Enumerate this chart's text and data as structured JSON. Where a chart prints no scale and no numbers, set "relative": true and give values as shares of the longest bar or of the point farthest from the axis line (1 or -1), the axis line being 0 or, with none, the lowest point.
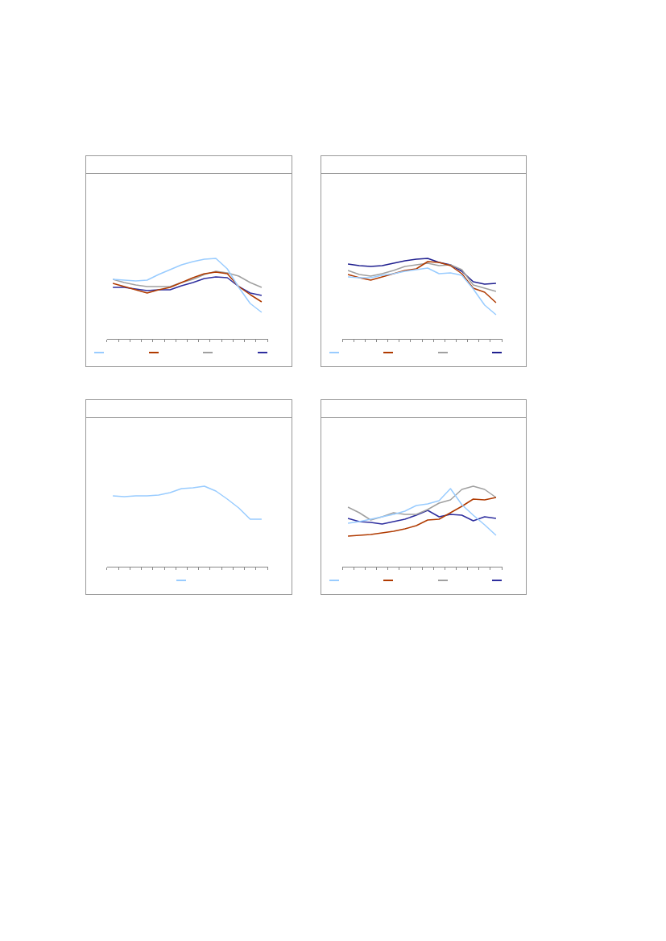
{
  "chart_data": [
    {
      "type": "line",
      "relative": true,
      "categories": [
        null,
        null,
        null,
        null,
        null,
        null,
        null,
        null,
        null,
        null,
        null,
        null,
        null,
        null
      ],
      "series": [
        {
          "color": "#99ccff",
          "values": [
            0.74,
            0.73,
            0.72,
            0.73,
            0.8,
            0.86,
            0.92,
            0.96,
            0.99,
            1,
            0.87,
            0.64,
            0.44,
            0.33
          ]
        },
        {
          "color": "#b03a00",
          "values": [
            0.69,
            0.65,
            0.61,
            0.57,
            0.61,
            0.64,
            0.7,
            0.76,
            0.81,
            0.83,
            0.81,
            0.65,
            0.55,
            0.46
          ]
        },
        {
          "color": "#a0a0a0",
          "values": [
            0.74,
            0.7,
            0.67,
            0.65,
            0.65,
            0.65,
            0.7,
            0.74,
            0.8,
            0.84,
            0.82,
            0.78,
            0.7,
            0.64
          ]
        },
        {
          "color": "#2e2e9e",
          "values": [
            0.64,
            0.64,
            0.62,
            0.6,
            0.61,
            0.61,
            0.66,
            0.7,
            0.75,
            0.77,
            0.76,
            0.65,
            0.57,
            0.54
          ]
        }
      ]
    },
    {
      "type": "line",
      "relative": true,
      "categories": [
        null,
        null,
        null,
        null,
        null,
        null,
        null,
        null,
        null,
        null,
        null,
        null,
        null,
        null
      ],
      "series": [
        {
          "color": "#99ccff",
          "values": [
            0.77,
            0.76,
            0.76,
            0.79,
            0.81,
            0.84,
            0.86,
            0.88,
            0.81,
            0.82,
            0.79,
            0.62,
            0.42,
            0.3
          ]
        },
        {
          "color": "#b03a00",
          "values": [
            0.8,
            0.76,
            0.73,
            0.77,
            0.81,
            0.85,
            0.87,
            0.96,
            0.95,
            0.91,
            0.81,
            0.63,
            0.58,
            0.45
          ]
        },
        {
          "color": "#a0a0a0",
          "values": [
            0.85,
            0.8,
            0.78,
            0.81,
            0.85,
            0.9,
            0.92,
            0.94,
            0.91,
            0.92,
            0.86,
            0.67,
            0.63,
            0.59
          ]
        },
        {
          "color": "#1f1f8f",
          "values": [
            0.93,
            0.91,
            0.9,
            0.91,
            0.94,
            0.97,
            0.99,
            1.0,
            0.95,
            0.92,
            0.84,
            0.71,
            0.68,
            0.69
          ]
        }
      ]
    },
    {
      "type": "line",
      "relative": true,
      "categories": [
        null,
        null,
        null,
        null,
        null,
        null,
        null,
        null,
        null,
        null,
        null,
        null,
        null,
        null
      ],
      "series": [
        {
          "color": "#99ccff",
          "values": [
            0.88,
            0.87,
            0.88,
            0.88,
            0.89,
            0.92,
            0.97,
            0.98,
            1,
            0.94,
            0.84,
            0.73,
            0.59,
            0.59
          ]
        }
      ]
    },
    {
      "type": "line",
      "relative": true,
      "categories": [
        null,
        null,
        null,
        null,
        null,
        null,
        null,
        null,
        null,
        null,
        null,
        null,
        null,
        null
      ],
      "series": [
        {
          "color": "#99ccff",
          "values": [
            0.54,
            0.56,
            0.59,
            0.62,
            0.65,
            0.69,
            0.76,
            0.78,
            0.82,
            0.97,
            0.77,
            0.64,
            0.52,
            0.39
          ]
        },
        {
          "color": "#b03a00",
          "values": [
            0.38,
            0.39,
            0.4,
            0.42,
            0.44,
            0.47,
            0.51,
            0.58,
            0.59,
            0.67,
            0.75,
            0.84,
            0.83,
            0.86
          ]
        },
        {
          "color": "#a0a0a0",
          "values": [
            0.74,
            0.67,
            0.58,
            0.62,
            0.67,
            0.65,
            0.65,
            0.71,
            0.79,
            0.83,
            0.96,
            1,
            0.96,
            0.86
          ]
        },
        {
          "color": "#2e2e9e",
          "values": [
            0.6,
            0.56,
            0.55,
            0.53,
            0.56,
            0.59,
            0.64,
            0.7,
            0.62,
            0.65,
            0.64,
            0.57,
            0.62,
            0.6
          ]
        }
      ]
    }
  ]
}
